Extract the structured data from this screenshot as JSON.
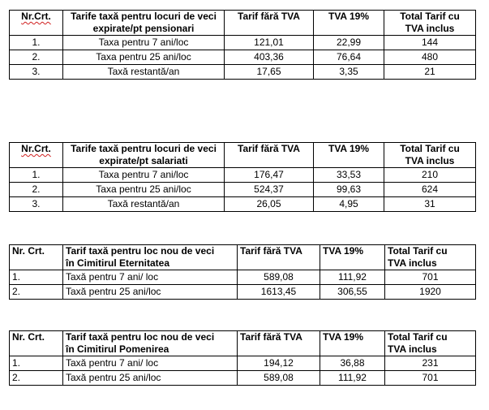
{
  "tables": [
    {
      "header": {
        "nr": "Nr.Crt.",
        "desc_line1": "Tarife taxă pentru locuri de veci",
        "desc_line2": "expirate/pt pensionari",
        "fara_tva": "Tarif fără TVA",
        "tva": "TVA 19%",
        "total_line1": "Total Tarif cu",
        "total_line2": "TVA inclus"
      },
      "rows": [
        {
          "nr": "1.",
          "desc": "Taxa pentru 7 ani/loc",
          "fara_tva": "121,01",
          "tva": "22,99",
          "total": "144"
        },
        {
          "nr": "2.",
          "desc": "Taxa pentru 25 ani/loc",
          "fara_tva": "403,36",
          "tva": "76,64",
          "total": "480"
        },
        {
          "nr": "3.",
          "desc": "Taxă restantă/an",
          "fara_tva": "17,65",
          "tva": "3,35",
          "total": "21"
        }
      ]
    },
    {
      "header": {
        "nr": "Nr.Crt.",
        "desc_line1": "Tarife taxă pentru locuri de veci",
        "desc_line2": "expirate/pt salariati",
        "fara_tva": "Tarif fără TVA",
        "tva": "TVA 19%",
        "total_line1": "Total Tarif cu",
        "total_line2": "TVA inclus"
      },
      "rows": [
        {
          "nr": "1.",
          "desc": "Taxa pentru 7 ani/loc",
          "fara_tva": "176,47",
          "tva": "33,53",
          "total": "210"
        },
        {
          "nr": "2.",
          "desc": "Taxa pentru 25 ani/loc",
          "fara_tva": "524,37",
          "tva": "99,63",
          "total": "624"
        },
        {
          "nr": "3.",
          "desc": "Taxă restantă/an",
          "fara_tva": "26,05",
          "tva": "4,95",
          "total": "31"
        }
      ]
    },
    {
      "header": {
        "nr": "Nr. Crt.",
        "desc_line1": "Tarif taxă pentru loc nou de veci",
        "desc_line2": "în Cimitirul Eternitatea",
        "fara_tva": "Tarif fără TVA",
        "tva": "TVA 19%",
        "total_line1": "Total Tarif cu",
        "total_line2": "TVA inclus"
      },
      "rows": [
        {
          "nr": "1.",
          "desc": "Taxă pentru 7 ani/ loc",
          "fara_tva": "589,08",
          "tva": "111,92",
          "total": "701"
        },
        {
          "nr": "2.",
          "desc": "Taxă pentru 25 ani/loc",
          "fara_tva": "1613,45",
          "tva": "306,55",
          "total": "1920"
        }
      ]
    },
    {
      "header": {
        "nr": "Nr. Crt.",
        "desc_line1": "Tarif taxă pentru loc nou de veci",
        "desc_line2": "în Cimitirul Pomenirea",
        "fara_tva": "Tarif fără TVA",
        "tva": "TVA 19%",
        "total_line1": "Total Tarif cu",
        "total_line2": "TVA inclus"
      },
      "rows": [
        {
          "nr": "1.",
          "desc": "Taxă pentru 7 ani/ loc",
          "fara_tva": "194,12",
          "tva": "36,88",
          "total": "231"
        },
        {
          "nr": "2.",
          "desc": "Taxă pentru 25 ani/loc",
          "fara_tva": "589,08",
          "tva": "111,92",
          "total": "701"
        }
      ]
    }
  ]
}
